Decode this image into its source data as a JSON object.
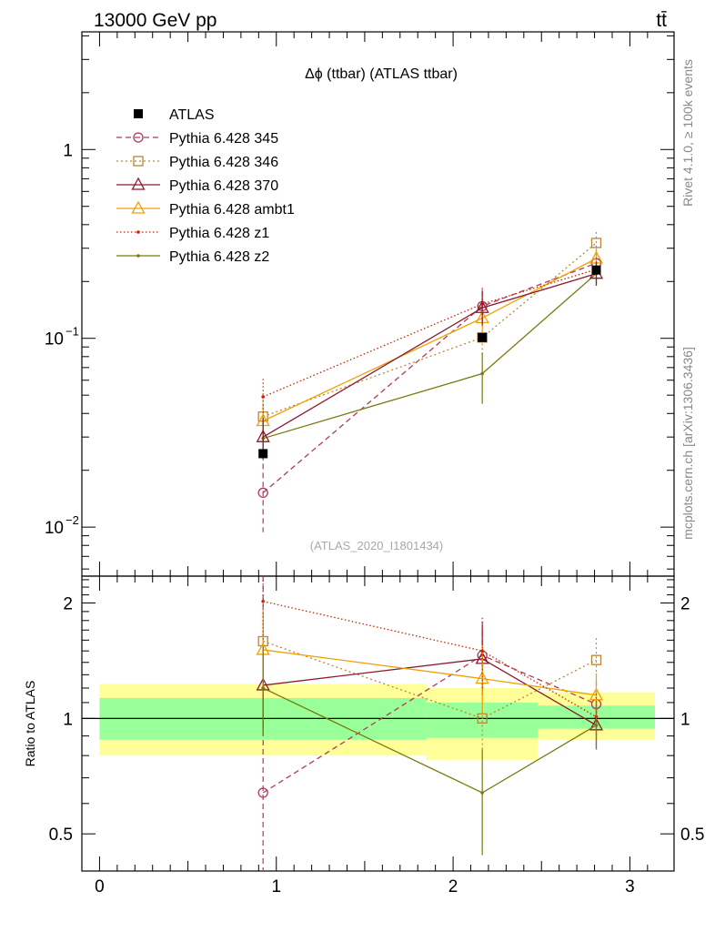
{
  "header": {
    "energy_label": "13000 GeV pp",
    "process_label": "tt̄"
  },
  "side": {
    "rivet_label": "Rivet 4.1.0, ≥ 100k events",
    "source_label": "mcplots.cern.ch [arXiv:1306.3436]"
  },
  "chart_data": {
    "type": "line",
    "title": "Δϕ (ttbar) (ATLAS ttbar)",
    "watermark": "(ATLAS_2020_I1801434)",
    "xlabel": "",
    "ylabel": "",
    "yscale": "log",
    "xlim": [
      -0.1,
      3.25
    ],
    "ylim": [
      0.0055,
      4.2
    ],
    "x_ticks": [
      "0",
      "1",
      "2",
      "3"
    ],
    "y_ticks": [
      "1",
      "10^-1",
      "10^-2"
    ],
    "bin_edges": [
      0.0,
      1.85,
      2.48,
      3.1416
    ],
    "x": [
      0.925,
      2.165,
      2.81
    ],
    "series": [
      {
        "name": "ATLAS",
        "color": "#000000",
        "dash": "none",
        "marker": "filled-square",
        "values": [
          0.0245,
          0.101,
          0.23
        ],
        "yerr_up": [
          0.001,
          0.002,
          0.005
        ],
        "yerr_down": [
          0.001,
          0.002,
          0.005
        ]
      },
      {
        "name": "Pythia 6.428 345",
        "color": "#b03a5b",
        "dash": "6,4",
        "marker": "open-circle",
        "values": [
          0.0152,
          0.148,
          0.25
        ],
        "yerr_up": [
          0.0065,
          0.033,
          0.037
        ],
        "yerr_down": [
          0.0058,
          0.029,
          0.033
        ]
      },
      {
        "name": "Pythia 6.428 346",
        "color": "#b8863b",
        "dash": "2,3",
        "marker": "open-square",
        "values": [
          0.0385,
          0.101,
          0.32
        ],
        "yerr_up": [
          0.009,
          0.023,
          0.046
        ],
        "yerr_down": [
          0.008,
          0.02,
          0.04
        ]
      },
      {
        "name": "Pythia 6.428 370",
        "color": "#8b1a2b",
        "dash": "none",
        "marker": "open-triangle",
        "values": [
          0.03,
          0.145,
          0.22
        ],
        "yerr_up": [
          0.008,
          0.032,
          0.033
        ],
        "yerr_down": [
          0.007,
          0.028,
          0.03
        ]
      },
      {
        "name": "Pythia 6.428 ambt1",
        "color": "#f0a000",
        "dash": "none",
        "marker": "open-triangle",
        "values": [
          0.0365,
          0.128,
          0.265
        ],
        "yerr_up": [
          0.009,
          0.028,
          0.038
        ],
        "yerr_down": [
          0.008,
          0.025,
          0.034
        ]
      },
      {
        "name": "Pythia 6.428 z1",
        "color": "#cc2200",
        "dash": "1.5,2.5",
        "marker": "small-dot",
        "values": [
          0.049,
          0.152,
          0.232
        ],
        "yerr_up": [
          0.012,
          0.033,
          0.035
        ],
        "yerr_down": [
          0.01,
          0.03,
          0.031
        ]
      },
      {
        "name": "Pythia 6.428 z2",
        "color": "#7a7a10",
        "dash": "none",
        "marker": "small-dot",
        "values": [
          0.0295,
          0.065,
          0.22
        ],
        "yerr_up": [
          0.008,
          0.019,
          0.033
        ],
        "yerr_down": [
          0.007,
          0.02,
          0.03
        ]
      }
    ],
    "ratio": {
      "ylabel": "Ratio to ATLAS",
      "ylim": [
        0.4,
        2.35
      ],
      "y_ticks": [
        "0.5",
        "1",
        "2"
      ],
      "band_inner": [
        [
          0.88,
          1.13
        ],
        [
          0.89,
          1.1
        ],
        [
          0.94,
          1.08
        ]
      ],
      "band_outer": [
        [
          0.8,
          1.23
        ],
        [
          0.78,
          1.2
        ],
        [
          0.88,
          1.17
        ]
      ],
      "series": [
        {
          "name": "Pythia 6.428 345",
          "values": [
            0.64,
            1.46,
            1.09
          ],
          "yerr_up": [
            1.8,
            0.33,
            0.16
          ],
          "yerr_down": [
            0.28,
            0.29,
            0.14
          ]
        },
        {
          "name": "Pythia 6.428 346",
          "values": [
            1.59,
            1.0,
            1.42
          ],
          "yerr_up": [
            0.37,
            0.23,
            0.2
          ],
          "yerr_down": [
            0.33,
            0.21,
            0.18
          ]
        },
        {
          "name": "Pythia 6.428 370",
          "values": [
            1.22,
            1.43,
            0.96
          ],
          "yerr_up": [
            0.33,
            0.32,
            0.14
          ],
          "yerr_down": [
            0.29,
            0.28,
            0.13
          ]
        },
        {
          "name": "Pythia 6.428 ambt1",
          "values": [
            1.51,
            1.27,
            1.15
          ],
          "yerr_up": [
            0.37,
            0.28,
            0.16
          ],
          "yerr_down": [
            0.33,
            0.25,
            0.15
          ]
        },
        {
          "name": "Pythia 6.428 z1",
          "values": [
            2.02,
            1.5,
            1.01
          ],
          "yerr_up": [
            0.49,
            0.33,
            0.15
          ],
          "yerr_down": [
            0.43,
            0.3,
            0.13
          ]
        },
        {
          "name": "Pythia 6.428 z2",
          "values": [
            1.2,
            0.64,
            0.96
          ],
          "yerr_up": [
            0.34,
            0.19,
            0.14
          ],
          "yerr_down": [
            0.29,
            0.2,
            0.13
          ]
        }
      ]
    }
  }
}
